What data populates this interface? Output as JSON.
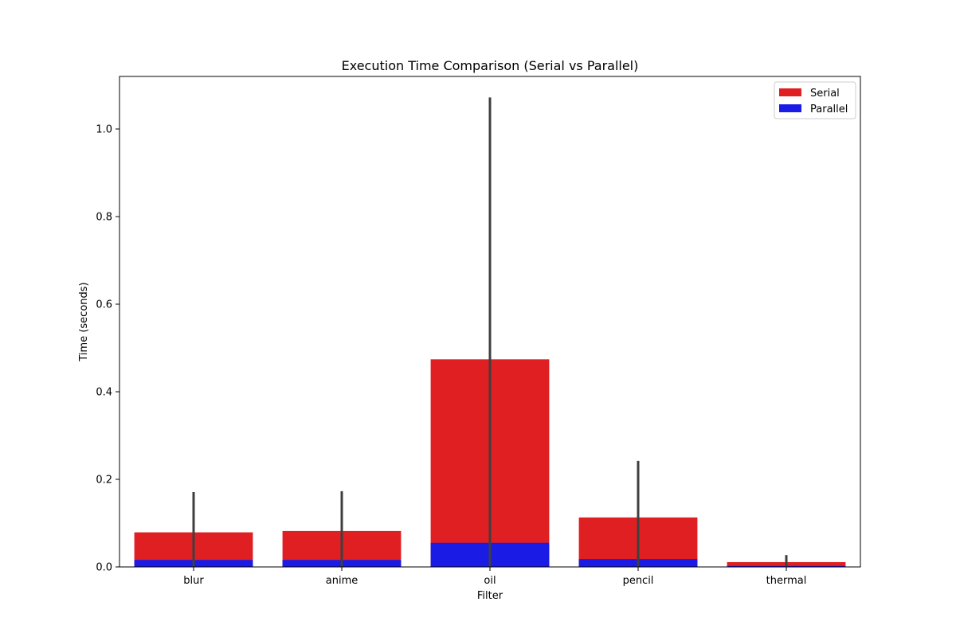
{
  "chart_data": {
    "type": "bar",
    "title": "Execution Time Comparison (Serial vs Parallel)",
    "xlabel": "Filter",
    "ylabel": "Time (seconds)",
    "categories": [
      "blur",
      "anime",
      "oil",
      "pencil",
      "thermal"
    ],
    "ylim": [
      0,
      1.12
    ],
    "yticks": [
      0.0,
      0.2,
      0.4,
      0.6,
      0.8,
      1.0
    ],
    "ytick_labels": [
      "0.0",
      "0.2",
      "0.4",
      "0.6",
      "0.8",
      "1.0"
    ],
    "grid": false,
    "legend_position": "top-right",
    "series": [
      {
        "name": "Serial",
        "color": "#e01f22",
        "values": [
          0.079,
          0.082,
          0.474,
          0.113,
          0.011
        ]
      },
      {
        "name": "Parallel",
        "color": "#1b1be6",
        "values": [
          0.016,
          0.016,
          0.055,
          0.018,
          0.002
        ]
      }
    ],
    "error_bars": {
      "color": "#3f3f3f",
      "low": [
        0.0,
        0.0,
        0.0,
        0.0,
        0.0
      ],
      "high": [
        0.171,
        0.173,
        1.072,
        0.242,
        0.027
      ]
    }
  }
}
